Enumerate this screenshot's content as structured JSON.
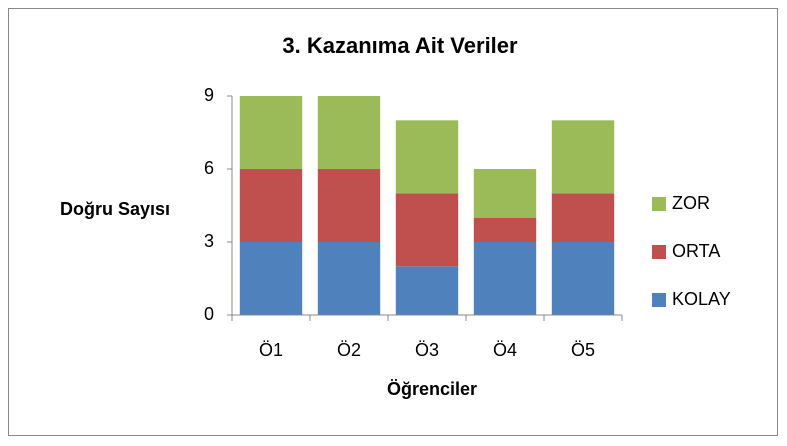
{
  "chart_data": {
    "type": "stacked_bar",
    "title": "3. Kazanıma Ait Veriler",
    "x_label": "Öğrenciler",
    "y_label": "Doğru Sayısı",
    "categories": [
      "Ö1",
      "Ö2",
      "Ö3",
      "Ö4",
      "Ö5"
    ],
    "series": [
      {
        "name": "KOLAY",
        "color": "#4f81bd",
        "values": [
          3,
          3,
          2,
          3,
          3
        ]
      },
      {
        "name": "ORTA",
        "color": "#c0504d",
        "values": [
          3,
          3,
          3,
          1,
          2
        ]
      },
      {
        "name": "ZOR",
        "color": "#9bbb59",
        "values": [
          3,
          3,
          3,
          2,
          3
        ]
      }
    ],
    "ylim": [
      0,
      9
    ],
    "yticks": [
      0,
      3,
      6,
      9
    ],
    "grid": false,
    "legend": "right"
  }
}
